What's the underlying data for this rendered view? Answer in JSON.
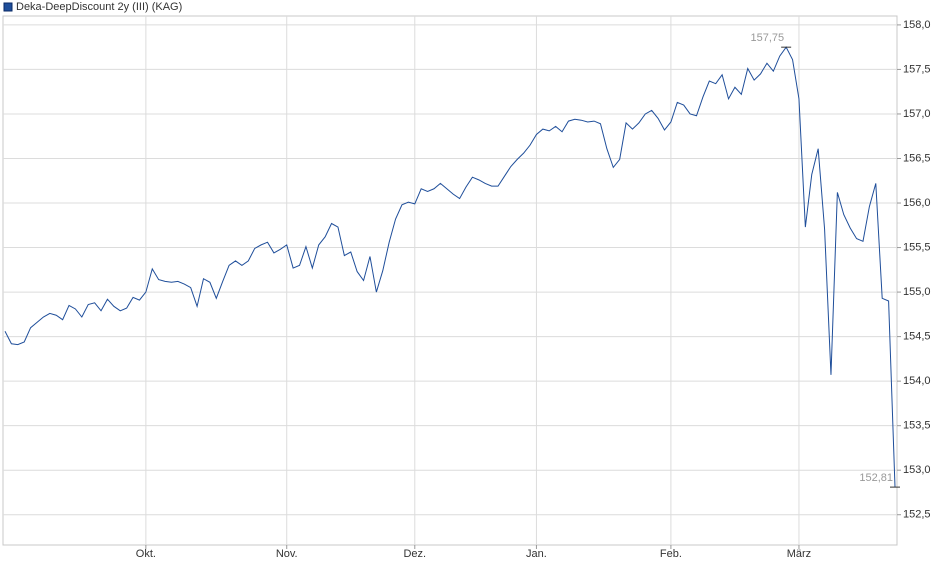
{
  "chart_data": {
    "type": "line",
    "categories": [
      null,
      null,
      null,
      null,
      null,
      null,
      null,
      null,
      null,
      null,
      null,
      null,
      null,
      null,
      null,
      null,
      null,
      null,
      null,
      null,
      null,
      null,
      "Okt.",
      null,
      null,
      null,
      null,
      null,
      null,
      null,
      null,
      null,
      null,
      null,
      null,
      null,
      null,
      null,
      null,
      null,
      null,
      null,
      null,
      null,
      "Nov.",
      null,
      null,
      null,
      null,
      null,
      null,
      null,
      null,
      null,
      null,
      null,
      null,
      null,
      null,
      null,
      null,
      null,
      null,
      null,
      "Dez.",
      null,
      null,
      null,
      null,
      null,
      null,
      null,
      null,
      null,
      null,
      null,
      null,
      null,
      null,
      null,
      null,
      null,
      null,
      "Jan.",
      null,
      null,
      null,
      null,
      null,
      null,
      null,
      null,
      null,
      null,
      null,
      null,
      null,
      null,
      null,
      null,
      null,
      null,
      null,
      null,
      "Feb.",
      null,
      null,
      null,
      null,
      null,
      null,
      null,
      null,
      null,
      null,
      null,
      null,
      null,
      null,
      null,
      null,
      null,
      null,
      null,
      "März",
      null,
      null,
      null,
      null,
      null,
      null,
      null,
      null,
      null,
      null,
      null,
      null,
      null,
      null,
      null
    ],
    "series": [
      {
        "name": "Deka-DeepDiscount 2y (III) (KAG)",
        "color": "#1f4e9a",
        "values": [
          154.56,
          154.42,
          154.41,
          154.44,
          154.6,
          154.66,
          154.72,
          154.76,
          154.74,
          154.69,
          154.85,
          154.81,
          154.72,
          154.86,
          154.88,
          154.79,
          154.92,
          154.84,
          154.79,
          154.82,
          154.94,
          154.91,
          155.0,
          155.26,
          155.14,
          155.12,
          155.11,
          155.12,
          155.09,
          155.05,
          154.84,
          155.15,
          155.11,
          154.93,
          155.12,
          155.3,
          155.35,
          155.3,
          155.35,
          155.49,
          155.53,
          155.56,
          155.44,
          155.48,
          155.53,
          155.27,
          155.3,
          155.51,
          155.27,
          155.53,
          155.62,
          155.77,
          155.73,
          155.41,
          155.45,
          155.23,
          155.13,
          155.4,
          155.0,
          155.24,
          155.56,
          155.82,
          155.98,
          156.01,
          155.99,
          156.16,
          156.13,
          156.16,
          156.22,
          156.16,
          156.1,
          156.05,
          156.18,
          156.29,
          156.26,
          156.22,
          156.19,
          156.19,
          156.3,
          156.41,
          156.49,
          156.56,
          156.65,
          156.77,
          156.83,
          156.81,
          156.86,
          156.8,
          156.92,
          156.94,
          156.93,
          156.91,
          156.92,
          156.89,
          156.61,
          156.4,
          156.49,
          156.9,
          156.83,
          156.9,
          157.0,
          157.04,
          156.95,
          156.82,
          156.91,
          157.13,
          157.1,
          157.0,
          156.98,
          157.19,
          157.37,
          157.34,
          157.44,
          157.17,
          157.3,
          157.22,
          157.51,
          157.38,
          157.45,
          157.57,
          157.48,
          157.65,
          157.75,
          157.61,
          157.17,
          155.73,
          156.32,
          156.61,
          155.71,
          154.07,
          156.12,
          155.87,
          155.72,
          155.6,
          155.57,
          155.96,
          156.22,
          154.93,
          154.9,
          152.81
        ]
      }
    ],
    "annotations": [
      {
        "value": 157.75,
        "label": "157,75"
      },
      {
        "value": 152.81,
        "label": "152,81"
      }
    ],
    "ylim": [
      152.16,
      158.1
    ],
    "yticks": [
      {
        "value": 152.5,
        "label": "152,5"
      },
      {
        "value": 153,
        "label": "153,0"
      },
      {
        "value": 153.5,
        "label": "153,5"
      },
      {
        "value": 154,
        "label": "154,0"
      },
      {
        "value": 154.5,
        "label": "154,5"
      },
      {
        "value": 155,
        "label": "155,0"
      },
      {
        "value": 155.5,
        "label": "155,5"
      },
      {
        "value": 156,
        "label": "156,0"
      },
      {
        "value": 156.5,
        "label": "156,5"
      },
      {
        "value": 157,
        "label": "157,0"
      },
      {
        "value": 157.5,
        "label": "157,5"
      },
      {
        "value": 158,
        "label": "158,0"
      }
    ],
    "grid": true
  }
}
